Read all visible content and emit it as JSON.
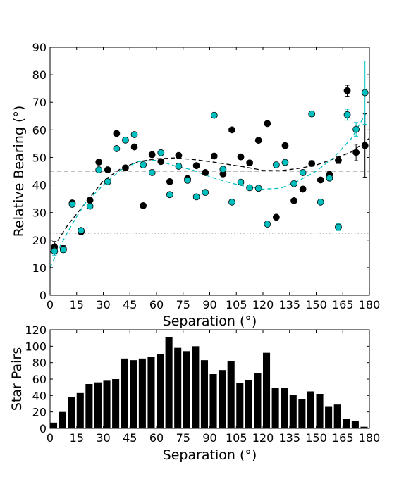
{
  "chart_data": [
    {
      "type": "scatter",
      "xlabel": "Separation (°)",
      "ylabel": "Relative Bearing (°)",
      "xlim": [
        0,
        180
      ],
      "ylim": [
        0,
        90
      ],
      "xticks": [
        0,
        15,
        30,
        45,
        60,
        75,
        90,
        105,
        120,
        135,
        150,
        165,
        180
      ],
      "yticks": [
        0,
        10,
        20,
        30,
        40,
        50,
        60,
        70,
        80,
        90
      ],
      "grid": false,
      "colors": {
        "black_series": "#000000",
        "cyan_series": "#00bfbf",
        "reference_line": "#808080"
      },
      "reference_lines": [
        {
          "y": 45,
          "style": "dashed"
        },
        {
          "y": 22.5,
          "style": "dotted"
        }
      ],
      "series": [
        {
          "marker_color": "#000000",
          "x": [
            2.5,
            7.5,
            12.5,
            17.5,
            22.5,
            27.5,
            32.5,
            37.5,
            42.5,
            47.5,
            52.5,
            57.5,
            62.5,
            67.5,
            72.5,
            77.5,
            82.5,
            87.5,
            92.5,
            97.5,
            102.5,
            107.5,
            112.5,
            117.5,
            122.5,
            127.5,
            132.5,
            137.5,
            142.5,
            147.5,
            152.5,
            157.5,
            162.5,
            167.5,
            172.5,
            177.5
          ],
          "y": [
            17.5,
            16.8,
            33.5,
            23.0,
            34.5,
            48.3,
            45.5,
            58.7,
            46.2,
            53.8,
            32.5,
            51.0,
            48.5,
            41.2,
            50.7,
            42.3,
            47.0,
            44.5,
            50.5,
            44.0,
            60.0,
            50.2,
            48.0,
            56.2,
            62.3,
            28.3,
            54.3,
            34.3,
            38.5,
            47.8,
            41.8,
            43.8,
            49.0,
            74.2,
            51.8,
            54.3
          ],
          "y_error": [
            2.0,
            1.2,
            0.8,
            0.8,
            0.7,
            0.6,
            0.5,
            0.5,
            0.5,
            0.5,
            0.5,
            0.5,
            0.5,
            0.5,
            0.5,
            0.5,
            0.5,
            0.5,
            0.5,
            0.5,
            0.5,
            0.5,
            0.5,
            0.5,
            0.5,
            0.5,
            0.5,
            0.5,
            0.5,
            1.0,
            0.6,
            1.0,
            1.2,
            2.0,
            3.0,
            11.5
          ],
          "trend": [
            [
              0,
              15.5
            ],
            [
              10,
              25.5
            ],
            [
              20,
              33.5
            ],
            [
              30,
              41.5
            ],
            [
              40,
              46.0
            ],
            [
              50,
              48.5
            ],
            [
              60,
              49.5
            ],
            [
              70,
              49.8
            ],
            [
              80,
              49.3
            ],
            [
              90,
              48.5
            ],
            [
              100,
              47.5
            ],
            [
              110,
              46.5
            ],
            [
              120,
              45.3
            ],
            [
              130,
              45.2
            ],
            [
              140,
              46.0
            ],
            [
              150,
              47.2
            ],
            [
              160,
              49.5
            ],
            [
              170,
              52.0
            ],
            [
              180,
              57.0
            ]
          ]
        },
        {
          "marker_color": "#00bfbf",
          "x": [
            2.5,
            7.5,
            12.5,
            17.5,
            22.5,
            27.5,
            32.5,
            37.5,
            42.5,
            47.5,
            52.5,
            57.5,
            62.5,
            67.5,
            72.5,
            77.5,
            82.5,
            87.5,
            92.5,
            97.5,
            102.5,
            107.5,
            112.5,
            117.5,
            122.5,
            127.5,
            132.5,
            137.5,
            142.5,
            147.5,
            152.5,
            157.5,
            162.5,
            167.5,
            172.5,
            177.5
          ],
          "y": [
            16.0,
            16.5,
            33.0,
            23.5,
            32.3,
            45.5,
            41.2,
            53.2,
            56.3,
            58.3,
            47.3,
            44.5,
            51.7,
            36.5,
            46.8,
            41.7,
            35.7,
            37.3,
            65.3,
            45.7,
            33.8,
            41.0,
            39.0,
            38.8,
            25.8,
            47.3,
            48.2,
            40.5,
            44.5,
            65.8,
            33.8,
            42.5,
            24.7,
            65.5,
            60.2,
            73.5
          ],
          "y_error": [
            1.5,
            1.0,
            0.8,
            0.8,
            0.7,
            0.6,
            0.5,
            0.5,
            0.5,
            0.5,
            0.5,
            0.5,
            0.5,
            0.5,
            0.5,
            0.5,
            0.5,
            0.5,
            0.5,
            0.5,
            0.5,
            0.5,
            0.5,
            0.5,
            0.5,
            0.5,
            0.5,
            0.5,
            0.5,
            0.5,
            0.5,
            1.0,
            1.2,
            2.0,
            2.5,
            11.5
          ],
          "trend": [
            [
              0,
              10.0
            ],
            [
              5,
              17.0
            ],
            [
              10,
              23.0
            ],
            [
              15,
              28.5
            ],
            [
              20,
              33.5
            ],
            [
              30,
              40.0
            ],
            [
              40,
              45.5
            ],
            [
              50,
              48.5
            ],
            [
              60,
              49.0
            ],
            [
              70,
              47.0
            ],
            [
              80,
              45.5
            ],
            [
              90,
              43.0
            ],
            [
              100,
              41.0
            ],
            [
              110,
              39.5
            ],
            [
              120,
              38.5
            ],
            [
              130,
              38.8
            ],
            [
              140,
              41.5
            ],
            [
              150,
              45.0
            ],
            [
              160,
              50.0
            ],
            [
              170,
              57.0
            ],
            [
              178,
              66.0
            ]
          ]
        }
      ]
    },
    {
      "type": "bar",
      "xlabel": "Separation (°)",
      "ylabel": "Star Pairs",
      "xlim": [
        0,
        180
      ],
      "ylim": [
        0,
        120
      ],
      "xticks": [
        0,
        15,
        30,
        45,
        60,
        75,
        90,
        105,
        120,
        135,
        150,
        165,
        180
      ],
      "yticks": [
        0,
        20,
        40,
        60,
        80,
        100,
        120
      ],
      "bar_color": "#000000",
      "bin_edges_start": 0,
      "bin_width": 5,
      "values": [
        7,
        20,
        38,
        43,
        54,
        56,
        58,
        60,
        85,
        83,
        85,
        87,
        90,
        111,
        98,
        94,
        100,
        83,
        66,
        71,
        82,
        55,
        59,
        67,
        92,
        49,
        49,
        41,
        36,
        45,
        42,
        27,
        29,
        12,
        9,
        2
      ]
    }
  ]
}
